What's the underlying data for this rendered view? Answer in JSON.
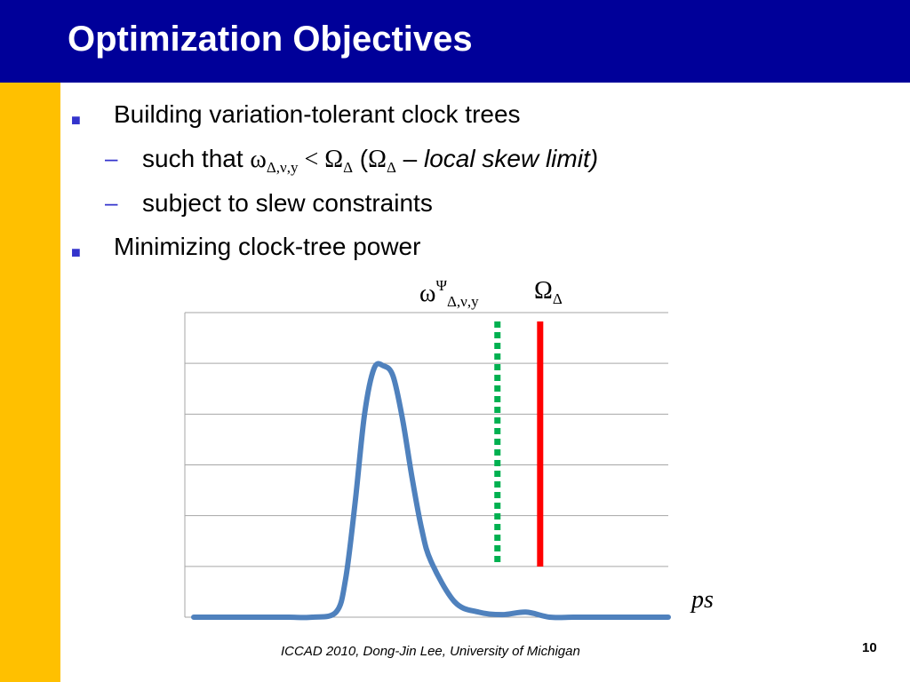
{
  "slide": {
    "title": "Optimization Objectives",
    "footer": "ICCAD 2010, Dong-Jin Lee, University of Michigan",
    "page_number": "10"
  },
  "bullets": {
    "b1": "Building variation-tolerant clock trees",
    "b1_sub1_prefix": "such that ",
    "b1_sub1_omega": "ω",
    "b1_sub1_omega_sub": "Δ,ν,y",
    "b1_sub1_lt": " < ",
    "b1_sub1_Omega": "Ω",
    "b1_sub1_Omega_sub": "Δ",
    "b1_sub1_paren_open": "  (",
    "b1_sub1_Omega2": "Ω",
    "b1_sub1_Omega2_sub": "Δ",
    "b1_sub1_dash": " – ",
    "b1_sub1_italic": "local skew limit)",
    "b1_sub2": "subject to slew constraints",
    "b2": "Minimizing clock-tree power"
  },
  "chart_labels": {
    "omega_psi": "ω",
    "omega_psi_sup": "Ψ",
    "omega_psi_sub": "Δ,ν,y",
    "Omega": "Ω",
    "Omega_sub": "Δ",
    "x_unit": "ps"
  },
  "colors": {
    "curve": "#4f81bd",
    "green_line": "#00b050",
    "red_line": "#ff0000",
    "grid": "#a6a6a6",
    "title_bar": "#000099",
    "side_bar": "#ffc000"
  },
  "chart_data": {
    "type": "line",
    "x": [
      0,
      5,
      10,
      15,
      20,
      25,
      30,
      32,
      34,
      36,
      38,
      40,
      42,
      44,
      46,
      48,
      50,
      55,
      60,
      65,
      70,
      75,
      80,
      85,
      90,
      95,
      100
    ],
    "series": [
      {
        "values": [
          0,
          0,
          0,
          0,
          0,
          0,
          0.02,
          0.15,
          0.45,
          0.8,
          0.98,
          0.99,
          0.95,
          0.78,
          0.55,
          0.35,
          0.22,
          0.06,
          0.02,
          0.01,
          0.02,
          0.0,
          0,
          0,
          0,
          0,
          0
        ]
      }
    ],
    "markers": [
      {
        "name": "omega",
        "x": 64,
        "style": "dotted",
        "color": "#00b050"
      },
      {
        "name": "Omega",
        "x": 73,
        "style": "solid",
        "color": "#ff0000"
      }
    ],
    "ylim": [
      0,
      1.2
    ],
    "xlim": [
      0,
      100
    ],
    "grid": true,
    "gridlines_y": 6
  }
}
